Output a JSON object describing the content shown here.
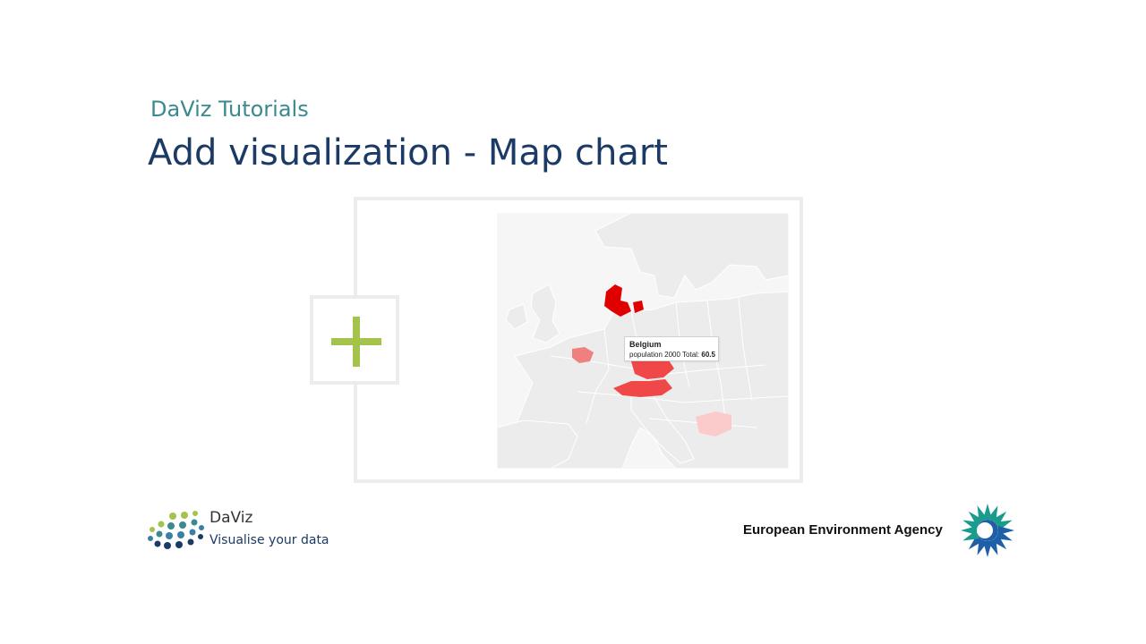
{
  "header": {
    "subtitle": "DaViz Tutorials",
    "title": "Add visualization - Map chart"
  },
  "map": {
    "tooltip": {
      "country": "Belgium",
      "series_label": "population 2000 Total:",
      "value": "60.5"
    },
    "highlighted_countries": [
      {
        "name": "Denmark",
        "color": "#e00000"
      },
      {
        "name": "Belgium",
        "color": "#f08080"
      },
      {
        "name": "Austria",
        "color": "#f04848"
      },
      {
        "name": "Czech Republic",
        "color": "#f04848"
      },
      {
        "name": "Bulgaria",
        "color": "#fbcaca"
      }
    ],
    "base_color": "#f6f6f6",
    "land_color": "#ececec"
  },
  "add_button": {
    "icon": "plus-icon",
    "color": "#a3c34a"
  },
  "footer": {
    "brand_name": "DaViz",
    "brand_tagline": "Visualise your data",
    "agency_name": "European Environment Agency"
  },
  "colors": {
    "title": "#1c3a66",
    "subtitle": "#3a8a8f",
    "frame": "#ececec"
  }
}
